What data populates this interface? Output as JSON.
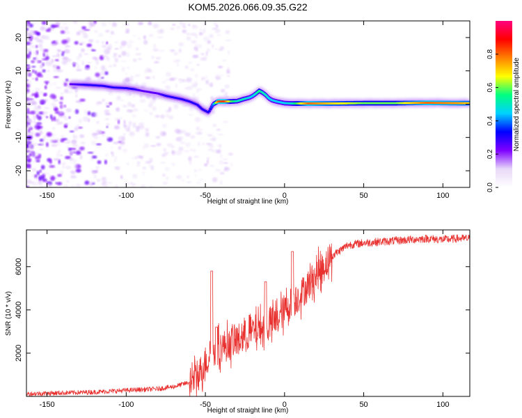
{
  "title": "KOM5.2026.066.09.35.G22",
  "chart_data": [
    {
      "type": "heatmap",
      "panel": "spectrogram",
      "xlabel": "Height of straight line (km)",
      "ylabel": "Frequency (Hz)",
      "xlim": [
        -163,
        117
      ],
      "ylim": [
        -25,
        25
      ],
      "x_ticks": [
        -150,
        -100,
        -50,
        0,
        50,
        100
      ],
      "y_ticks": [
        -20,
        -10,
        0,
        10,
        20
      ],
      "colorbar": {
        "label": "Normalized spectral amplitude",
        "range": [
          0.0,
          1.0
        ],
        "ticks": [
          0.0,
          0.2,
          0.4,
          0.6,
          0.8
        ],
        "tick_labels": [
          "0.0",
          "0.2",
          "0.4",
          "0.6",
          "0.8"
        ],
        "colors": [
          "#ffffff",
          "#e8d8f8",
          "#7f00ff",
          "#0000ff",
          "#00d2ff",
          "#00ff80",
          "#ffff00",
          "#ff8000",
          "#ff0000",
          "#ff0080"
        ]
      },
      "ridge_x": [
        -135,
        -125,
        -115,
        -108,
        -100,
        -95,
        -90,
        -85,
        -80,
        -75,
        -70,
        -65,
        -60,
        -55,
        -52,
        -48,
        -45,
        -42,
        -38,
        -34,
        -30,
        -26,
        -22,
        -20,
        -18,
        -16,
        -14,
        -12,
        -10,
        -8,
        -5,
        -2,
        0,
        5,
        15,
        30,
        50,
        70,
        90,
        110,
        117
      ],
      "ridge_f": [
        6,
        5.8,
        5.5,
        5.0,
        4.8,
        4.5,
        4.0,
        3.6,
        3.2,
        2.5,
        2.0,
        1.5,
        0.8,
        -0.2,
        -1.5,
        -2.5,
        0.0,
        0.8,
        0.8,
        0.8,
        0.9,
        1.5,
        2.0,
        2.5,
        3.2,
        4.0,
        3.5,
        2.8,
        1.8,
        1.2,
        0.8,
        0.5,
        0.3,
        0.2,
        0.2,
        0.2,
        0.3,
        0.3,
        0.4,
        0.3,
        0.3
      ],
      "ridge_amp": [
        0.25,
        0.3,
        0.3,
        0.3,
        0.3,
        0.3,
        0.25,
        0.25,
        0.25,
        0.3,
        0.3,
        0.3,
        0.3,
        0.3,
        0.3,
        0.3,
        0.4,
        0.8,
        0.85,
        0.6,
        0.5,
        0.5,
        0.45,
        0.45,
        0.5,
        0.55,
        0.5,
        0.5,
        0.45,
        0.45,
        0.45,
        0.45,
        0.45,
        0.5,
        0.8,
        0.7,
        0.6,
        0.6,
        0.8,
        0.75,
        0.7
      ]
    },
    {
      "type": "line",
      "panel": "snr",
      "xlabel": "Height of straight line (km)",
      "ylabel": "SNR (10 * v/v)",
      "xlim": [
        -163,
        117
      ],
      "ylim": [
        0,
        7700
      ],
      "x_ticks": [
        -150,
        -100,
        -50,
        0,
        50,
        100
      ],
      "y_ticks": [
        2000,
        4000,
        6000
      ],
      "color": "#e8302e",
      "series_name": "SNR",
      "trend_x": [
        -163,
        -120,
        -100,
        -80,
        -70,
        -60,
        -55,
        -50,
        -45,
        -40,
        -35,
        -30,
        -20,
        -10,
        -5,
        0,
        10,
        20,
        30,
        40,
        50,
        60,
        70,
        80,
        90,
        100,
        110,
        117
      ],
      "trend_y": [
        120,
        200,
        280,
        350,
        450,
        650,
        900,
        1600,
        2100,
        2300,
        2400,
        2600,
        3000,
        3300,
        3500,
        4000,
        4700,
        5600,
        6500,
        7000,
        7100,
        7150,
        7200,
        7250,
        7300,
        7250,
        7300,
        7300
      ],
      "spikes": [
        {
          "x": -46,
          "y": 5800
        },
        {
          "x": -43,
          "y": 3200
        },
        {
          "x": -12,
          "y": 5300
        },
        {
          "x": 5,
          "y": 6700
        }
      ]
    }
  ]
}
